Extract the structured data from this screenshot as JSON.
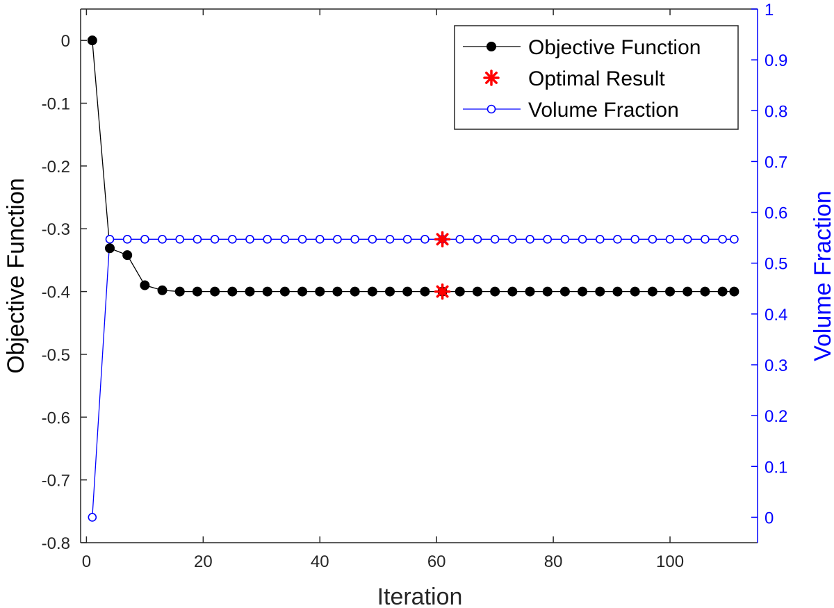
{
  "chart_data": {
    "type": "line",
    "xlabel": "Iteration",
    "ylabel": "Objective Function",
    "y2label": "Volume Fraction",
    "xlim": [
      -1,
      115
    ],
    "ylim": [
      -0.8,
      0.05
    ],
    "y2lim": [
      -0.05,
      1.0
    ],
    "xticks": [
      0,
      20,
      40,
      60,
      80,
      100
    ],
    "yticks": [
      0,
      -0.1,
      -0.2,
      -0.3,
      -0.4,
      -0.5,
      -0.6,
      -0.7,
      -0.8
    ],
    "y2ticks": [
      0,
      0.1,
      0.2,
      0.3,
      0.4,
      0.5,
      0.6,
      0.7,
      0.8,
      0.9,
      1
    ],
    "legend_position": "top-right",
    "grid": false,
    "series": [
      {
        "name": "Objective Function",
        "axis": "left",
        "color": "#000000",
        "marker": "filled-circle",
        "x": [
          1,
          4,
          7,
          10,
          13,
          16,
          19,
          22,
          25,
          28,
          31,
          34,
          37,
          40,
          43,
          46,
          49,
          52,
          55,
          58,
          61,
          64,
          67,
          70,
          73,
          76,
          79,
          82,
          85,
          88,
          91,
          94,
          97,
          100,
          103,
          106,
          109,
          111
        ],
        "y": [
          0,
          -0.331,
          -0.342,
          -0.39,
          -0.398,
          -0.4,
          -0.4,
          -0.4,
          -0.4,
          -0.4,
          -0.4,
          -0.4,
          -0.4,
          -0.4,
          -0.4,
          -0.4,
          -0.4,
          -0.4,
          -0.4,
          -0.4,
          -0.4,
          -0.4,
          -0.4,
          -0.4,
          -0.4,
          -0.4,
          -0.4,
          -0.4,
          -0.4,
          -0.4,
          -0.4,
          -0.4,
          -0.4,
          -0.4,
          -0.4,
          -0.4,
          -0.4,
          -0.4
        ]
      },
      {
        "name": "Optimal Result",
        "axis": "left",
        "color": "#ff0000",
        "marker": "asterisk",
        "x": [
          61
        ],
        "y": [
          -0.4
        ]
      },
      {
        "name": "Volume Fraction",
        "axis": "right",
        "color": "#0000ff",
        "marker": "open-circle",
        "x": [
          1,
          4,
          7,
          10,
          13,
          16,
          19,
          22,
          25,
          28,
          31,
          34,
          37,
          40,
          43,
          46,
          49,
          52,
          55,
          58,
          61,
          64,
          67,
          70,
          73,
          76,
          79,
          82,
          85,
          88,
          91,
          94,
          97,
          100,
          103,
          106,
          109,
          111
        ],
        "y": [
          0,
          0.547,
          0.547,
          0.547,
          0.547,
          0.547,
          0.547,
          0.547,
          0.547,
          0.547,
          0.547,
          0.547,
          0.547,
          0.547,
          0.547,
          0.547,
          0.547,
          0.547,
          0.547,
          0.547,
          0.547,
          0.547,
          0.547,
          0.547,
          0.547,
          0.547,
          0.547,
          0.547,
          0.547,
          0.547,
          0.547,
          0.547,
          0.547,
          0.547,
          0.547,
          0.547,
          0.547,
          0.547
        ]
      },
      {
        "name": "",
        "axis": "right",
        "color": "#ff0000",
        "marker": "asterisk",
        "x": [
          61
        ],
        "y": [
          0.547
        ]
      }
    ]
  }
}
